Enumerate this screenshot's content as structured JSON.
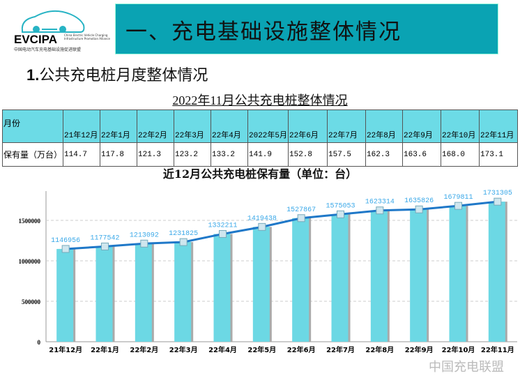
{
  "logo": {
    "text": "EVCIPA",
    "en": "China Electric Vehicle Charging Infrastructure Promotion Alliance",
    "cn": "中国电动汽车充电基础设施促进联盟"
  },
  "banner": {
    "title": "一、充电基础设施整体情况"
  },
  "subtitle": {
    "num": "1.",
    "text": "公共充电桩月度整体情况"
  },
  "table": {
    "title": "2022年11月公共充电桩整体情况",
    "header_label": "月份",
    "row_label": "保有量（万台）",
    "months": [
      "21年12月",
      "22年1月",
      "22年2月",
      "22年3月",
      "22年4月",
      "2022年5月",
      "22年6月",
      "22年7月",
      "22年8月",
      "22年9月",
      "22年10月",
      "22年11月"
    ],
    "values": [
      "114.7",
      "117.8",
      "121.3",
      "123.2",
      "133.2",
      "141.9",
      "152.8",
      "157.5",
      "162.3",
      "163.6",
      "168.0",
      "173.1"
    ]
  },
  "chart_data": {
    "type": "bar",
    "title": "近12月公共充电桩保有量（单位：台）",
    "categories": [
      "21年12月",
      "22年1月",
      "22年2月",
      "22年3月",
      "22年4月",
      "22年5月",
      "22年6月",
      "22年7月",
      "22年8月",
      "22年9月",
      "22年10月",
      "22年11月"
    ],
    "values": [
      1146956,
      1177542,
      1213092,
      1231825,
      1332211,
      1419438,
      1527867,
      1575053,
      1623314,
      1635826,
      1679811,
      1731305
    ],
    "yticks": [
      "0",
      "500000",
      "1000000",
      "1500000"
    ],
    "ylim": [
      0,
      1900000
    ],
    "grid": true,
    "overlay": "line",
    "colors": {
      "bar": "#6cd8e4",
      "line": "#1f78c8",
      "label": "#3aa8e8"
    }
  },
  "watermark": "中国充电联盟"
}
